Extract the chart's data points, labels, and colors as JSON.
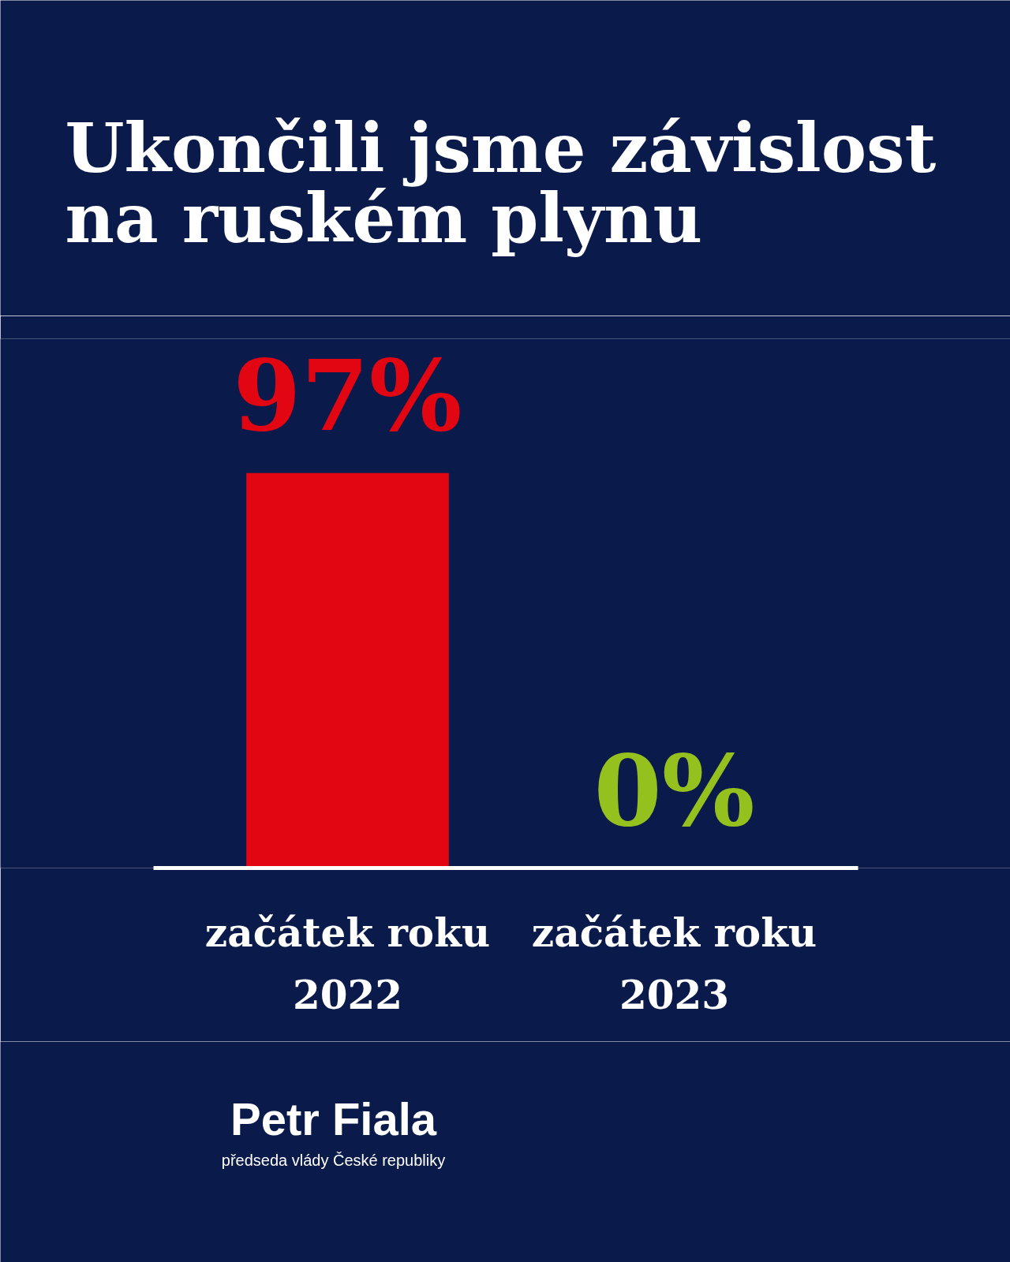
{
  "chart_data": {
    "type": "bar",
    "title": "Ukončili jsme závislost na ruském plynu",
    "categories": [
      "začátek roku 2022",
      "začátek roku 2023"
    ],
    "values": [
      97,
      0
    ],
    "colors": [
      "#e20613",
      "#95c11f"
    ],
    "value_labels": [
      "97%",
      "0%"
    ],
    "ylim": [
      0,
      130
    ],
    "tick_labels": "x",
    "annotations": [
      "Petr Fiala",
      "předseda vlády České republiky"
    ]
  }
}
